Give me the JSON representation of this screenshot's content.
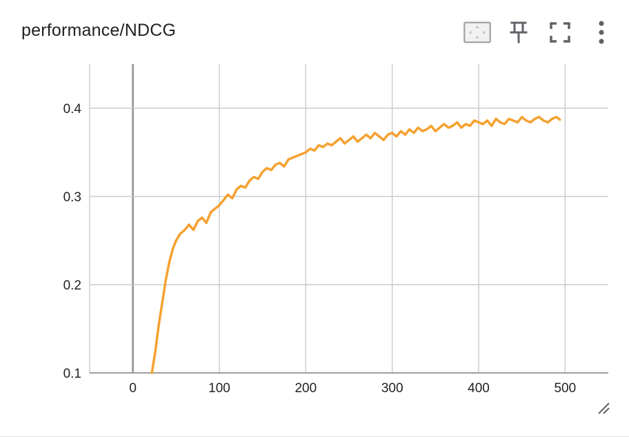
{
  "card": {
    "title": "performance/NDCG"
  },
  "toolbar": {
    "icons": [
      "fit-domain-icon",
      "pin-icon",
      "fullscreen-icon",
      "more-vert-icon"
    ]
  },
  "colors": {
    "series": "#f5a130",
    "grid": "#cccccc",
    "zero_axis": "#9e9e9e",
    "icon": "#5f6368"
  },
  "chart_data": {
    "type": "line",
    "title": "performance/NDCG",
    "xlabel": "",
    "ylabel": "",
    "xlim": [
      -50,
      550
    ],
    "ylim": [
      0.1,
      0.45
    ],
    "x_ticks": [
      0,
      100,
      200,
      300,
      400,
      500
    ],
    "y_ticks": [
      0.1,
      0.2,
      0.3,
      0.4
    ],
    "x_tick_labels": [
      "0",
      "100",
      "200",
      "300",
      "400",
      "500"
    ],
    "y_tick_labels": [
      "0.1",
      "0.2",
      "0.3",
      "0.4"
    ],
    "grid": true,
    "legend": "none",
    "series": [
      {
        "x": [
          22,
          26,
          30,
          34,
          38,
          42,
          46,
          50,
          55,
          60,
          65,
          70,
          75,
          80,
          85,
          90,
          95,
          100,
          105,
          110,
          115,
          120,
          125,
          130,
          135,
          140,
          145,
          150,
          155,
          160,
          165,
          170,
          175,
          180,
          185,
          190,
          195,
          200,
          205,
          210,
          215,
          220,
          225,
          230,
          235,
          240,
          245,
          250,
          255,
          260,
          265,
          270,
          275,
          280,
          285,
          290,
          295,
          300,
          305,
          310,
          315,
          320,
          325,
          330,
          335,
          340,
          345,
          350,
          355,
          360,
          365,
          370,
          375,
          380,
          385,
          390,
          395,
          400,
          405,
          410,
          415,
          420,
          425,
          430,
          435,
          440,
          445,
          450,
          455,
          460,
          465,
          470,
          475,
          480,
          485,
          490,
          494
        ],
        "y": [
          0.1,
          0.125,
          0.155,
          0.18,
          0.205,
          0.225,
          0.24,
          0.25,
          0.258,
          0.262,
          0.268,
          0.262,
          0.272,
          0.276,
          0.27,
          0.282,
          0.286,
          0.29,
          0.296,
          0.302,
          0.298,
          0.308,
          0.312,
          0.31,
          0.318,
          0.322,
          0.32,
          0.328,
          0.332,
          0.33,
          0.336,
          0.338,
          0.334,
          0.342,
          0.344,
          0.346,
          0.348,
          0.35,
          0.354,
          0.352,
          0.358,
          0.356,
          0.36,
          0.358,
          0.362,
          0.366,
          0.36,
          0.364,
          0.368,
          0.362,
          0.366,
          0.37,
          0.366,
          0.372,
          0.368,
          0.364,
          0.37,
          0.372,
          0.368,
          0.374,
          0.37,
          0.376,
          0.372,
          0.378,
          0.374,
          0.376,
          0.38,
          0.374,
          0.378,
          0.382,
          0.378,
          0.38,
          0.384,
          0.378,
          0.382,
          0.38,
          0.386,
          0.384,
          0.382,
          0.386,
          0.38,
          0.388,
          0.384,
          0.382,
          0.388,
          0.386,
          0.384,
          0.39,
          0.386,
          0.384,
          0.388,
          0.39,
          0.386,
          0.384,
          0.388,
          0.39,
          0.387
        ]
      }
    ]
  }
}
